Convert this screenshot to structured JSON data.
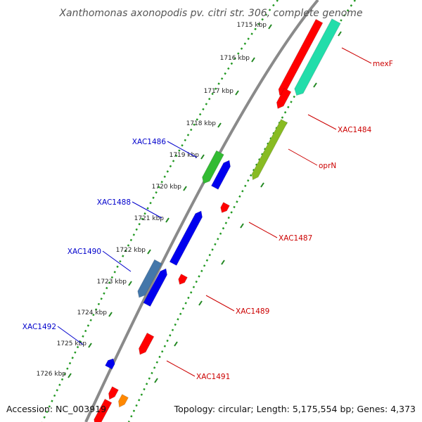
{
  "title": "Xanthomonas axonopodis pv. citri str. 306, complete genome",
  "footer": {
    "accession": "Accession: NC_003919",
    "summary": "Topology: circular; Length: 5,175,554 bp; Genes: 4,373"
  },
  "colors": {
    "backbone": "#8a8a8a",
    "dots": "#229922",
    "ticks": "#228822",
    "forward_label": "#cc0000",
    "reverse_label": "#0000cc"
  },
  "ticks": [
    {
      "label": "1715 kbp"
    },
    {
      "label": "1716 kbp"
    },
    {
      "label": "1717 kbp"
    },
    {
      "label": "1718 kbp"
    },
    {
      "label": "1719 kbp"
    },
    {
      "label": "1720 kbp"
    },
    {
      "label": "1721 kbp"
    },
    {
      "label": "1722 kbp"
    },
    {
      "label": "1723 kbp"
    },
    {
      "label": "1724 kbp"
    },
    {
      "label": "1725 kbp"
    },
    {
      "label": "1726 kbp"
    }
  ],
  "labels": {
    "forward": [
      "mexF",
      "XAC1484",
      "oprN",
      "XAC1487",
      "XAC1489",
      "XAC1491"
    ],
    "reverse": [
      "XAC1486",
      "XAC1488",
      "XAC1490",
      "XAC1492"
    ]
  },
  "features": [
    {
      "name": "fwd-gene-top",
      "color": "#ff0000"
    },
    {
      "name": "mexF",
      "color": "#22ddaa"
    },
    {
      "name": "XAC1484",
      "color": "#ff0000"
    },
    {
      "name": "oprN",
      "color": "#88bb22"
    },
    {
      "name": "XAC1487",
      "color": "#ff0000"
    },
    {
      "name": "XAC1489",
      "color": "#ff0000"
    },
    {
      "name": "XAC1491",
      "color": "#ff0000"
    },
    {
      "name": "fwd-gene-bottom",
      "color": "#ff0000"
    },
    {
      "name": "fwd-gene-bottom-2",
      "color": "#ff0000"
    },
    {
      "name": "orange-gene",
      "color": "#ff8800"
    },
    {
      "name": "XAC1486",
      "color": "#33bb33"
    },
    {
      "name": "XAC1486-partner",
      "color": "#0000ee"
    },
    {
      "name": "XAC1488",
      "color": "#0000ee"
    },
    {
      "name": "XAC1490",
      "color": "#4477aa"
    },
    {
      "name": "XAC1490-partner",
      "color": "#0000ee"
    },
    {
      "name": "XAC1492",
      "color": "#0000ee"
    }
  ]
}
